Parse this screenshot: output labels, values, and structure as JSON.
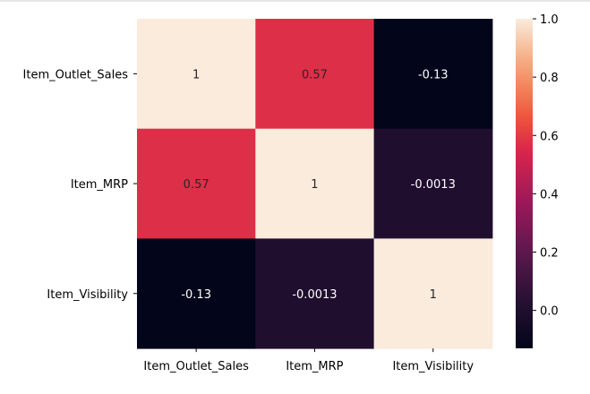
{
  "chart_data": {
    "type": "heatmap",
    "title": "",
    "xlabel": "",
    "ylabel": "",
    "x_categories": [
      "Item_Outlet_Sales",
      "Item_MRP",
      "Item_Visibility"
    ],
    "y_categories": [
      "Item_Outlet_Sales",
      "Item_MRP",
      "Item_Visibility"
    ],
    "values": [
      [
        1,
        0.57,
        -0.13
      ],
      [
        0.57,
        1,
        -0.0013
      ],
      [
        -0.13,
        -0.0013,
        1
      ]
    ],
    "cell_labels": [
      [
        "1",
        "0.57",
        "-0.13"
      ],
      [
        "0.57",
        "1",
        "-0.0013"
      ],
      [
        "-0.13",
        "-0.0013",
        "1"
      ]
    ],
    "colorbar": {
      "colormap": "rocket",
      "vmin": -0.13,
      "vmax": 1.0,
      "ticks": [
        0.0,
        0.2,
        0.4,
        0.6,
        0.8,
        1.0
      ],
      "tick_labels": [
        "0.0",
        "0.2",
        "0.4",
        "0.6",
        "0.8",
        "1.0"
      ]
    },
    "colors": {
      "low": "#03051a",
      "mid": "#e5404a",
      "high": "#faebdd"
    }
  }
}
